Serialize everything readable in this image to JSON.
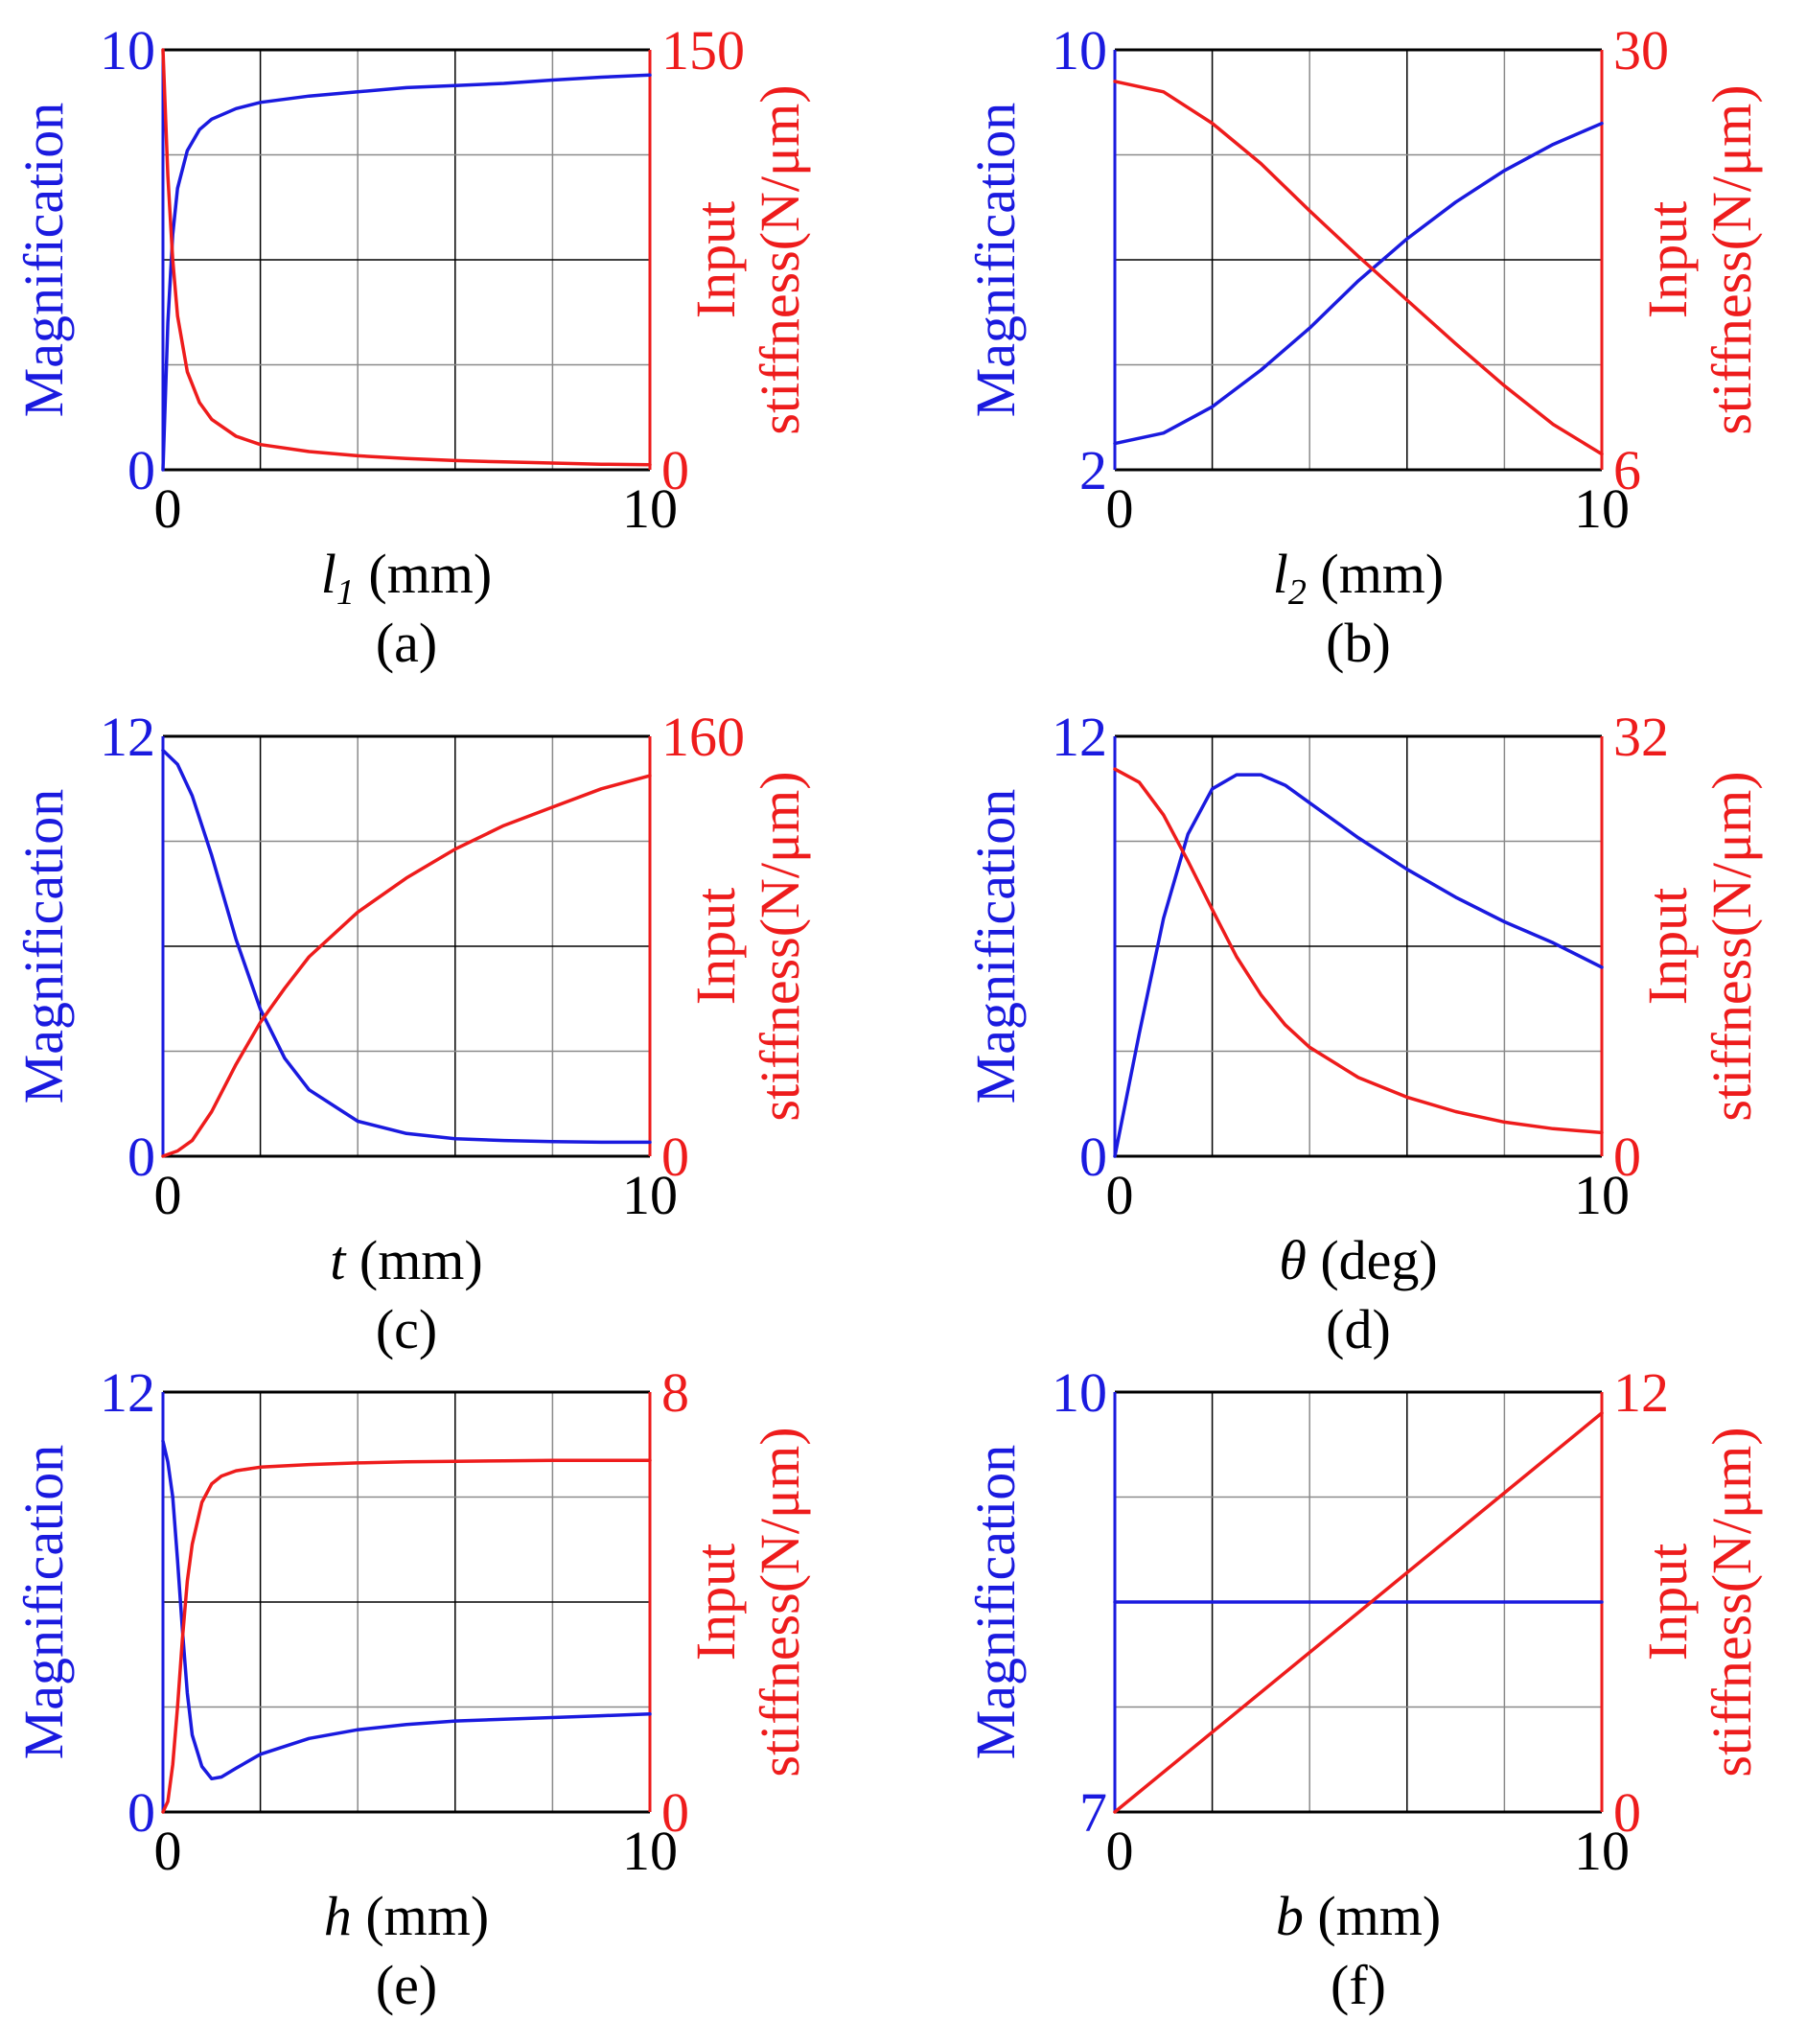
{
  "colors": {
    "blue": "#1a1adf",
    "red": "#ee1c1c",
    "grid": "#000000",
    "minor_grid": "#8a8a8a"
  },
  "chart_data": [
    {
      "panel": "a",
      "caption": "(a)",
      "type": "line",
      "xlabel_var": "l",
      "xlabel_sub": "1",
      "xlabel_unit": "(mm)",
      "xlim": [
        0,
        10
      ],
      "x_ticks": [
        "0",
        "10"
      ],
      "ylabel_left": "Magnification",
      "ylim_left": [
        0,
        10
      ],
      "left_ticks": [
        "0",
        "10"
      ],
      "ylabel_right_line1": "Input",
      "ylabel_right_line2": "stiffness(N/μm)",
      "ylim_right": [
        0,
        150
      ],
      "right_ticks": [
        "0",
        "150"
      ],
      "series": [
        {
          "name": "Magnification",
          "axis": "left",
          "color": "blue",
          "x": [
            0,
            0.1,
            0.2,
            0.3,
            0.5,
            0.75,
            1,
            1.5,
            2,
            3,
            4,
            5,
            6,
            7,
            8,
            9,
            10
          ],
          "y": [
            0,
            3.5,
            5.6,
            6.7,
            7.6,
            8.1,
            8.35,
            8.6,
            8.75,
            8.9,
            9.0,
            9.1,
            9.15,
            9.2,
            9.28,
            9.35,
            9.4
          ]
        },
        {
          "name": "Input stiffness",
          "axis": "right",
          "color": "red",
          "x": [
            0,
            0.1,
            0.2,
            0.3,
            0.5,
            0.75,
            1,
            1.5,
            2,
            3,
            4,
            5,
            6,
            7,
            8,
            9,
            10
          ],
          "y": [
            150,
            105,
            75,
            55,
            35,
            24,
            18,
            12,
            9,
            6.5,
            5,
            4,
            3.3,
            2.8,
            2.4,
            2.0,
            1.8
          ]
        }
      ]
    },
    {
      "panel": "b",
      "caption": "(b)",
      "type": "line",
      "xlabel_var": "l",
      "xlabel_sub": "2",
      "xlabel_unit": "(mm)",
      "xlim": [
        0,
        10
      ],
      "x_ticks": [
        "0",
        "10"
      ],
      "ylabel_left": "Magnification",
      "ylim_left": [
        2,
        10
      ],
      "left_ticks": [
        "2",
        "10"
      ],
      "ylabel_right_line1": "Input",
      "ylabel_right_line2": "stiffness(N/μm)",
      "ylim_right": [
        6,
        30
      ],
      "right_ticks": [
        "6",
        "30"
      ],
      "series": [
        {
          "name": "Magnification",
          "axis": "left",
          "color": "blue",
          "x": [
            0,
            1,
            2,
            3,
            4,
            5,
            6,
            7,
            8,
            9,
            10
          ],
          "y": [
            2.5,
            2.7,
            3.2,
            3.9,
            4.7,
            5.6,
            6.4,
            7.1,
            7.7,
            8.2,
            8.6
          ]
        },
        {
          "name": "Input stiffness",
          "axis": "right",
          "color": "red",
          "x": [
            0,
            1,
            2,
            3,
            4,
            5,
            6,
            7,
            8,
            9,
            10
          ],
          "y": [
            28.2,
            27.6,
            25.8,
            23.5,
            20.8,
            18.2,
            15.7,
            13.2,
            10.8,
            8.6,
            6.9
          ]
        }
      ]
    },
    {
      "panel": "c",
      "caption": "(c)",
      "type": "line",
      "xlabel_var": "t",
      "xlabel_sub": "",
      "xlabel_unit": "(mm)",
      "xlim": [
        0,
        10
      ],
      "x_ticks": [
        "0",
        "10"
      ],
      "ylabel_left": "Magnification",
      "ylim_left": [
        0,
        12
      ],
      "left_ticks": [
        "0",
        "12"
      ],
      "ylabel_right_line1": "Input",
      "ylabel_right_line2": "stiffness(N/μm)",
      "ylim_right": [
        0,
        160
      ],
      "right_ticks": [
        "0",
        "160"
      ],
      "series": [
        {
          "name": "Magnification",
          "axis": "left",
          "color": "blue",
          "x": [
            0,
            0.3,
            0.6,
            1,
            1.5,
            2,
            2.5,
            3,
            4,
            5,
            6,
            7,
            8,
            9,
            10
          ],
          "y": [
            11.6,
            11.2,
            10.3,
            8.6,
            6.2,
            4.2,
            2.8,
            1.9,
            1.0,
            0.65,
            0.5,
            0.45,
            0.42,
            0.4,
            0.4
          ]
        },
        {
          "name": "Input stiffness",
          "axis": "right",
          "color": "red",
          "x": [
            0,
            0.3,
            0.6,
            1,
            1.5,
            2,
            2.5,
            3,
            4,
            5,
            6,
            7,
            8,
            9,
            10
          ],
          "y": [
            0,
            2,
            6,
            17,
            35,
            51,
            64,
            76,
            93,
            106,
            117,
            126,
            133,
            140,
            145
          ]
        }
      ]
    },
    {
      "panel": "d",
      "caption": "(d)",
      "type": "line",
      "xlabel_var": "θ",
      "xlabel_sub": "",
      "xlabel_unit": "(deg)",
      "xlim": [
        0,
        10
      ],
      "x_ticks": [
        "0",
        "10"
      ],
      "ylabel_left": "Magnification",
      "ylim_left": [
        0,
        12
      ],
      "left_ticks": [
        "0",
        "12"
      ],
      "ylabel_right_line1": "Input",
      "ylabel_right_line2": "stiffness(N/μm)",
      "ylim_right": [
        0,
        32
      ],
      "right_ticks": [
        "0",
        "32"
      ],
      "series": [
        {
          "name": "Magnification",
          "axis": "left",
          "color": "blue",
          "x": [
            0,
            0.5,
            1,
            1.5,
            2,
            2.5,
            3,
            3.5,
            4,
            5,
            6,
            7,
            8,
            9,
            10
          ],
          "y": [
            0,
            3.5,
            6.8,
            9.2,
            10.5,
            10.9,
            10.9,
            10.6,
            10.1,
            9.1,
            8.2,
            7.4,
            6.7,
            6.1,
            5.4
          ]
        },
        {
          "name": "Input stiffness",
          "axis": "right",
          "color": "red",
          "x": [
            0,
            0.5,
            1,
            1.5,
            2,
            2.5,
            3,
            3.5,
            4,
            5,
            6,
            7,
            8,
            9,
            10
          ],
          "y": [
            29.5,
            28.5,
            26.0,
            22.5,
            18.8,
            15.2,
            12.3,
            10.0,
            8.3,
            6.0,
            4.5,
            3.4,
            2.6,
            2.1,
            1.8
          ]
        }
      ]
    },
    {
      "panel": "e",
      "caption": "(e)",
      "type": "line",
      "xlabel_var": "h",
      "xlabel_sub": "",
      "xlabel_unit": "(mm)",
      "xlim": [
        0,
        10
      ],
      "x_ticks": [
        "0",
        "10"
      ],
      "ylabel_left": "Magnification",
      "ylim_left": [
        0,
        12
      ],
      "left_ticks": [
        "0",
        "12"
      ],
      "ylabel_right_line1": "Input",
      "ylabel_right_line2": "stiffness(N/μm)",
      "ylim_right": [
        0,
        8
      ],
      "right_ticks": [
        "0",
        "8"
      ],
      "series": [
        {
          "name": "Magnification",
          "axis": "left",
          "color": "blue",
          "x": [
            0,
            0.1,
            0.2,
            0.3,
            0.4,
            0.5,
            0.6,
            0.8,
            1,
            1.2,
            1.5,
            2,
            3,
            4,
            5,
            6,
            7,
            8,
            9,
            10
          ],
          "y": [
            10.6,
            10.0,
            9.0,
            7.2,
            5.2,
            3.4,
            2.2,
            1.3,
            0.95,
            1.0,
            1.25,
            1.65,
            2.1,
            2.35,
            2.5,
            2.6,
            2.65,
            2.7,
            2.75,
            2.8
          ]
        },
        {
          "name": "Input stiffness",
          "axis": "right",
          "color": "red",
          "x": [
            0,
            0.1,
            0.2,
            0.3,
            0.4,
            0.5,
            0.6,
            0.8,
            1,
            1.2,
            1.5,
            2,
            3,
            4,
            5,
            6,
            7,
            8,
            9,
            10
          ],
          "y": [
            0,
            0.2,
            0.9,
            2.0,
            3.3,
            4.4,
            5.1,
            5.9,
            6.25,
            6.4,
            6.5,
            6.57,
            6.62,
            6.65,
            6.67,
            6.68,
            6.69,
            6.7,
            6.7,
            6.7
          ]
        }
      ]
    },
    {
      "panel": "f",
      "caption": "(f)",
      "type": "line",
      "xlabel_var": "b",
      "xlabel_sub": "",
      "xlabel_unit": "(mm)",
      "xlim": [
        0,
        10
      ],
      "x_ticks": [
        "0",
        "10"
      ],
      "ylabel_left": "Magnification",
      "ylim_left": [
        7,
        10
      ],
      "left_ticks": [
        "7",
        "10"
      ],
      "ylabel_right_line1": "Input",
      "ylabel_right_line2": "stiffness(N/μm)",
      "ylim_right": [
        0,
        12
      ],
      "right_ticks": [
        "0",
        "12"
      ],
      "series": [
        {
          "name": "Magnification",
          "axis": "left",
          "color": "blue",
          "x": [
            0,
            10
          ],
          "y": [
            8.5,
            8.5
          ]
        },
        {
          "name": "Input stiffness",
          "axis": "right",
          "color": "red",
          "x": [
            0,
            10
          ],
          "y": [
            0,
            11.4
          ]
        }
      ]
    }
  ]
}
